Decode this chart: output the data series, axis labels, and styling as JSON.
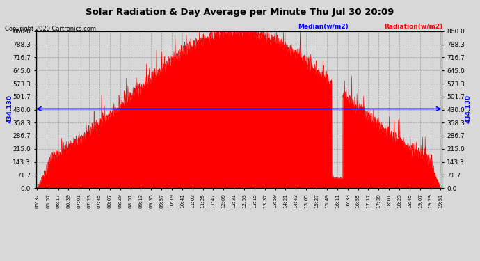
{
  "title": "Solar Radiation & Day Average per Minute Thu Jul 30 20:09",
  "copyright": "Copyright 2020 Cartronics.com",
  "legend_median": "Median(w/m2)",
  "legend_radiation": "Radiation(w/m2)",
  "median_value": 434.13,
  "ymin": 0.0,
  "ymax": 860.0,
  "yticks": [
    0.0,
    71.7,
    143.3,
    215.0,
    286.7,
    358.3,
    430.0,
    501.7,
    573.3,
    645.0,
    716.7,
    788.3,
    860.0
  ],
  "bg_color": "#d8d8d8",
  "fill_color": "#ff0000",
  "median_color": "#0000ff",
  "title_color": "#000000",
  "tick_labels": [
    "05:32",
    "05:57",
    "06:17",
    "06:39",
    "07:01",
    "07:23",
    "07:45",
    "08:07",
    "08:29",
    "08:51",
    "09:13",
    "09:35",
    "09:57",
    "10:19",
    "10:41",
    "11:03",
    "11:25",
    "11:47",
    "12:09",
    "12:31",
    "12:53",
    "13:15",
    "13:37",
    "13:59",
    "14:21",
    "14:43",
    "15:05",
    "15:27",
    "15:49",
    "16:11",
    "16:33",
    "16:55",
    "17:17",
    "17:39",
    "18:01",
    "18:23",
    "18:45",
    "19:07",
    "19:29",
    "19:51"
  ],
  "peak_time": 760,
  "sigma": 220,
  "seed": 42
}
